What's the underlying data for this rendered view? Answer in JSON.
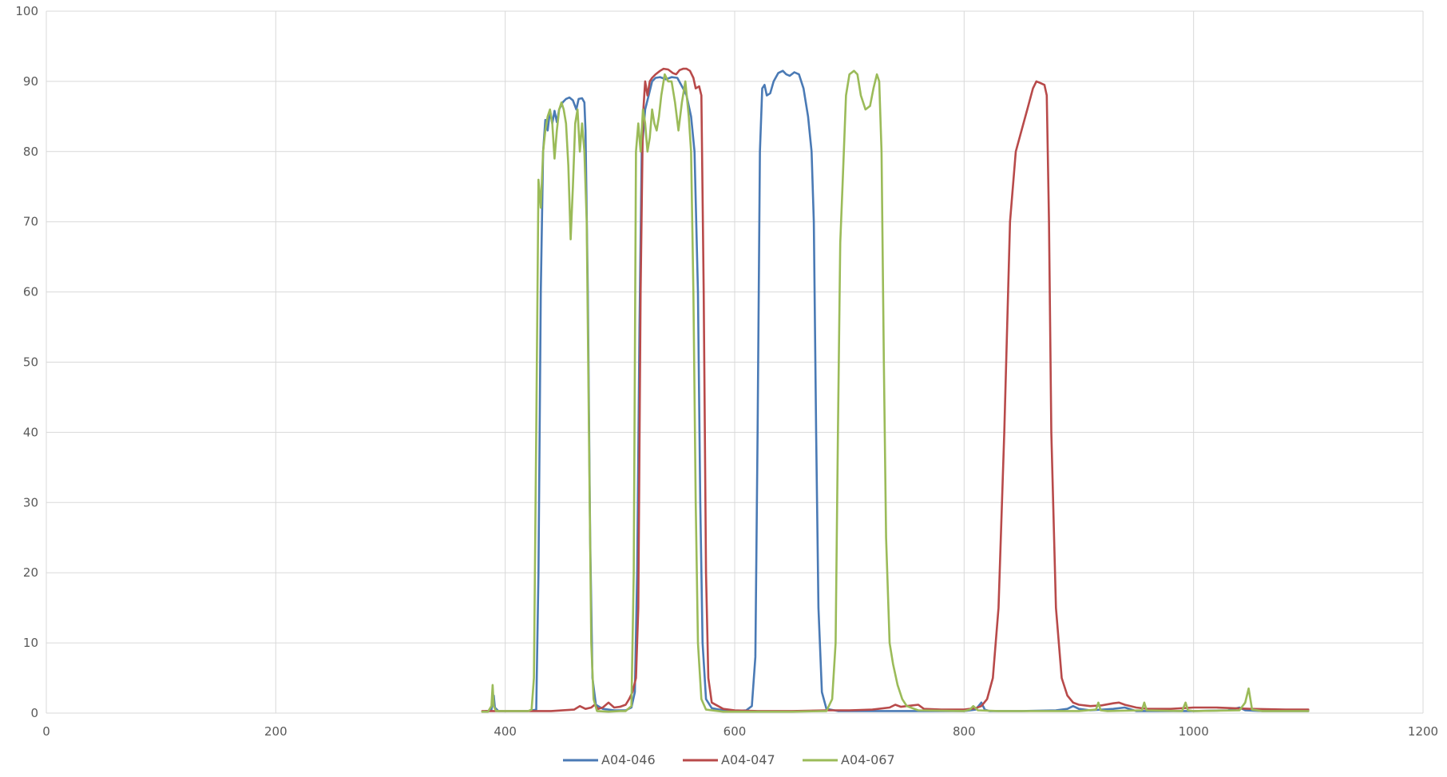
{
  "chart_data": {
    "type": "line",
    "title": "",
    "xlabel": "",
    "ylabel": "",
    "xlim": [
      0,
      1200
    ],
    "ylim": [
      0,
      100
    ],
    "x_ticks": [
      0,
      200,
      400,
      600,
      800,
      1000,
      1200
    ],
    "y_ticks": [
      0,
      10,
      20,
      30,
      40,
      50,
      60,
      70,
      80,
      90,
      100
    ],
    "grid": true,
    "legend_position": "bottom",
    "series": [
      {
        "name": "A04-046",
        "color": "#4a7ab5",
        "points": [
          [
            383,
            0.3
          ],
          [
            386,
            0.3
          ],
          [
            388,
            0.5
          ],
          [
            390,
            2.5
          ],
          [
            391,
            0.8
          ],
          [
            394,
            0.3
          ],
          [
            400,
            0.3
          ],
          [
            420,
            0.3
          ],
          [
            427,
            0.5
          ],
          [
            429,
            20
          ],
          [
            431,
            60
          ],
          [
            433,
            80
          ],
          [
            435,
            84.5
          ],
          [
            437,
            83
          ],
          [
            439,
            85.8
          ],
          [
            441,
            84
          ],
          [
            443,
            85.8
          ],
          [
            445,
            84.2
          ],
          [
            447,
            86
          ],
          [
            450,
            87
          ],
          [
            453,
            87.5
          ],
          [
            456,
            87.7
          ],
          [
            459,
            87.3
          ],
          [
            462,
            86
          ],
          [
            464,
            87.5
          ],
          [
            467,
            87.6
          ],
          [
            469,
            87
          ],
          [
            470,
            83
          ],
          [
            472,
            60
          ],
          [
            474,
            25
          ],
          [
            476,
            5
          ],
          [
            479,
            1.2
          ],
          [
            485,
            0.6
          ],
          [
            495,
            0.4
          ],
          [
            505,
            0.4
          ],
          [
            510,
            0.8
          ],
          [
            513,
            3
          ],
          [
            515,
            20
          ],
          [
            517,
            55
          ],
          [
            519,
            80
          ],
          [
            522,
            86
          ],
          [
            525,
            88
          ],
          [
            528,
            90
          ],
          [
            531,
            90.5
          ],
          [
            535,
            90.6
          ],
          [
            540,
            90.3
          ],
          [
            545,
            90.6
          ],
          [
            550,
            90.5
          ],
          [
            555,
            89
          ],
          [
            558,
            88
          ],
          [
            562,
            85
          ],
          [
            565,
            80
          ],
          [
            568,
            60
          ],
          [
            570,
            30
          ],
          [
            572,
            10
          ],
          [
            575,
            2
          ],
          [
            580,
            0.7
          ],
          [
            590,
            0.4
          ],
          [
            600,
            0.3
          ],
          [
            610,
            0.4
          ],
          [
            615,
            1
          ],
          [
            618,
            8
          ],
          [
            620,
            40
          ],
          [
            622,
            80
          ],
          [
            624,
            89
          ],
          [
            626,
            89.5
          ],
          [
            628,
            88
          ],
          [
            631,
            88.3
          ],
          [
            634,
            90
          ],
          [
            638,
            91.2
          ],
          [
            642,
            91.5
          ],
          [
            645,
            91
          ],
          [
            648,
            90.8
          ],
          [
            652,
            91.3
          ],
          [
            656,
            91
          ],
          [
            660,
            89
          ],
          [
            664,
            85
          ],
          [
            667,
            80
          ],
          [
            669,
            70
          ],
          [
            671,
            40
          ],
          [
            673,
            15
          ],
          [
            676,
            3
          ],
          [
            680,
            0.6
          ],
          [
            690,
            0.3
          ],
          [
            700,
            0.3
          ],
          [
            750,
            0.3
          ],
          [
            800,
            0.3
          ],
          [
            810,
            0.5
          ],
          [
            815,
            1.5
          ],
          [
            818,
            0.5
          ],
          [
            822,
            0.3
          ],
          [
            850,
            0.3
          ],
          [
            880,
            0.4
          ],
          [
            890,
            0.6
          ],
          [
            895,
            1
          ],
          [
            900,
            0.6
          ],
          [
            910,
            0.4
          ],
          [
            930,
            0.6
          ],
          [
            940,
            0.8
          ],
          [
            950,
            0.3
          ],
          [
            1000,
            0.3
          ],
          [
            1030,
            0.4
          ],
          [
            1040,
            0.8
          ],
          [
            1045,
            0.4
          ],
          [
            1060,
            0.3
          ],
          [
            1100,
            0.3
          ]
        ]
      },
      {
        "name": "A04-047",
        "color": "#b84a4a",
        "points": [
          [
            380,
            0.3
          ],
          [
            390,
            0.3
          ],
          [
            400,
            0.3
          ],
          [
            420,
            0.3
          ],
          [
            440,
            0.3
          ],
          [
            460,
            0.5
          ],
          [
            465,
            1
          ],
          [
            470,
            0.6
          ],
          [
            475,
            0.8
          ],
          [
            478,
            1.2
          ],
          [
            481,
            0.6
          ],
          [
            485,
            0.8
          ],
          [
            490,
            1.5
          ],
          [
            495,
            0.8
          ],
          [
            500,
            0.9
          ],
          [
            505,
            1.2
          ],
          [
            508,
            2
          ],
          [
            511,
            3
          ],
          [
            514,
            5
          ],
          [
            516,
            15
          ],
          [
            518,
            60
          ],
          [
            520,
            85
          ],
          [
            522,
            90
          ],
          [
            524,
            88
          ],
          [
            526,
            90
          ],
          [
            528,
            90.5
          ],
          [
            531,
            91
          ],
          [
            535,
            91.5
          ],
          [
            538,
            91.8
          ],
          [
            542,
            91.7
          ],
          [
            546,
            91.2
          ],
          [
            549,
            91
          ],
          [
            552,
            91.6
          ],
          [
            555,
            91.8
          ],
          [
            558,
            91.8
          ],
          [
            561,
            91.5
          ],
          [
            564,
            90.5
          ],
          [
            566,
            89
          ],
          [
            569,
            89.3
          ],
          [
            571,
            88
          ],
          [
            573,
            60
          ],
          [
            575,
            20
          ],
          [
            577,
            5
          ],
          [
            580,
            1.5
          ],
          [
            590,
            0.6
          ],
          [
            600,
            0.4
          ],
          [
            620,
            0.3
          ],
          [
            650,
            0.3
          ],
          [
            680,
            0.4
          ],
          [
            700,
            0.4
          ],
          [
            720,
            0.5
          ],
          [
            735,
            0.8
          ],
          [
            740,
            1.2
          ],
          [
            745,
            0.9
          ],
          [
            750,
            1
          ],
          [
            760,
            1.2
          ],
          [
            765,
            0.6
          ],
          [
            780,
            0.5
          ],
          [
            800,
            0.5
          ],
          [
            810,
            0.7
          ],
          [
            815,
            1
          ],
          [
            820,
            2
          ],
          [
            825,
            5
          ],
          [
            830,
            15
          ],
          [
            835,
            40
          ],
          [
            840,
            70
          ],
          [
            845,
            80
          ],
          [
            850,
            83
          ],
          [
            855,
            86
          ],
          [
            860,
            89
          ],
          [
            863,
            90
          ],
          [
            866,
            89.8
          ],
          [
            870,
            89.5
          ],
          [
            872,
            88
          ],
          [
            874,
            70
          ],
          [
            876,
            40
          ],
          [
            880,
            15
          ],
          [
            885,
            5
          ],
          [
            890,
            2.5
          ],
          [
            895,
            1.5
          ],
          [
            900,
            1.2
          ],
          [
            910,
            1
          ],
          [
            920,
            1.1
          ],
          [
            930,
            1.4
          ],
          [
            935,
            1.5
          ],
          [
            940,
            1.2
          ],
          [
            950,
            0.8
          ],
          [
            960,
            0.6
          ],
          [
            980,
            0.6
          ],
          [
            1000,
            0.8
          ],
          [
            1020,
            0.8
          ],
          [
            1050,
            0.6
          ],
          [
            1080,
            0.5
          ],
          [
            1100,
            0.5
          ]
        ]
      },
      {
        "name": "A04-067",
        "color": "#9bbb59",
        "points": [
          [
            380,
            0.2
          ],
          [
            385,
            0.2
          ],
          [
            388,
            1
          ],
          [
            389,
            4
          ],
          [
            390,
            1
          ],
          [
            392,
            0.3
          ],
          [
            400,
            0.3
          ],
          [
            420,
            0.3
          ],
          [
            423,
            0.5
          ],
          [
            425,
            5
          ],
          [
            427,
            40
          ],
          [
            429,
            76
          ],
          [
            431,
            72
          ],
          [
            433,
            80
          ],
          [
            435,
            83
          ],
          [
            437,
            85
          ],
          [
            439,
            86
          ],
          [
            441,
            84
          ],
          [
            443,
            79
          ],
          [
            445,
            83
          ],
          [
            447,
            86
          ],
          [
            449,
            87
          ],
          [
            451,
            86
          ],
          [
            453,
            84
          ],
          [
            455,
            78
          ],
          [
            457,
            67.5
          ],
          [
            459,
            75
          ],
          [
            461,
            84
          ],
          [
            463,
            86
          ],
          [
            465,
            80
          ],
          [
            467,
            84
          ],
          [
            469,
            80
          ],
          [
            471,
            70
          ],
          [
            473,
            40
          ],
          [
            475,
            10
          ],
          [
            477,
            2
          ],
          [
            480,
            0.3
          ],
          [
            490,
            0.2
          ],
          [
            500,
            0.3
          ],
          [
            505,
            0.3
          ],
          [
            510,
            1
          ],
          [
            512,
            20
          ],
          [
            514,
            80
          ],
          [
            516,
            84
          ],
          [
            518,
            80
          ],
          [
            520,
            86
          ],
          [
            522,
            84
          ],
          [
            524,
            80
          ],
          [
            526,
            82
          ],
          [
            528,
            86
          ],
          [
            530,
            84
          ],
          [
            532,
            83
          ],
          [
            534,
            85
          ],
          [
            536,
            88
          ],
          [
            539,
            91
          ],
          [
            542,
            90
          ],
          [
            545,
            90
          ],
          [
            548,
            87
          ],
          [
            551,
            83
          ],
          [
            554,
            87
          ],
          [
            557,
            90
          ],
          [
            560,
            85
          ],
          [
            562,
            80
          ],
          [
            564,
            60
          ],
          [
            566,
            30
          ],
          [
            568,
            10
          ],
          [
            571,
            2
          ],
          [
            575,
            0.5
          ],
          [
            590,
            0.2
          ],
          [
            600,
            0.2
          ],
          [
            650,
            0.2
          ],
          [
            680,
            0.3
          ],
          [
            685,
            2
          ],
          [
            688,
            10
          ],
          [
            690,
            40
          ],
          [
            692,
            67
          ],
          [
            694,
            75
          ],
          [
            697,
            88
          ],
          [
            700,
            91
          ],
          [
            704,
            91.5
          ],
          [
            707,
            91
          ],
          [
            710,
            88
          ],
          [
            714,
            86
          ],
          [
            718,
            86.5
          ],
          [
            721,
            89
          ],
          [
            724,
            91
          ],
          [
            726,
            90
          ],
          [
            728,
            80
          ],
          [
            730,
            50
          ],
          [
            732,
            25
          ],
          [
            735,
            10
          ],
          [
            738,
            7
          ],
          [
            742,
            4
          ],
          [
            746,
            2
          ],
          [
            750,
            1
          ],
          [
            760,
            0.4
          ],
          [
            800,
            0.3
          ],
          [
            805,
            0.5
          ],
          [
            808,
            1
          ],
          [
            812,
            0.4
          ],
          [
            830,
            0.3
          ],
          [
            900,
            0.3
          ],
          [
            915,
            0.5
          ],
          [
            917,
            1.5
          ],
          [
            919,
            0.4
          ],
          [
            925,
            0.3
          ],
          [
            955,
            0.4
          ],
          [
            957,
            1.5
          ],
          [
            959,
            0.4
          ],
          [
            990,
            0.3
          ],
          [
            993,
            1.5
          ],
          [
            995,
            0.4
          ],
          [
            1000,
            0.3
          ],
          [
            1040,
            0.4
          ],
          [
            1045,
            1.5
          ],
          [
            1048,
            3.5
          ],
          [
            1051,
            0.5
          ],
          [
            1060,
            0.3
          ],
          [
            1100,
            0.3
          ]
        ]
      }
    ]
  }
}
